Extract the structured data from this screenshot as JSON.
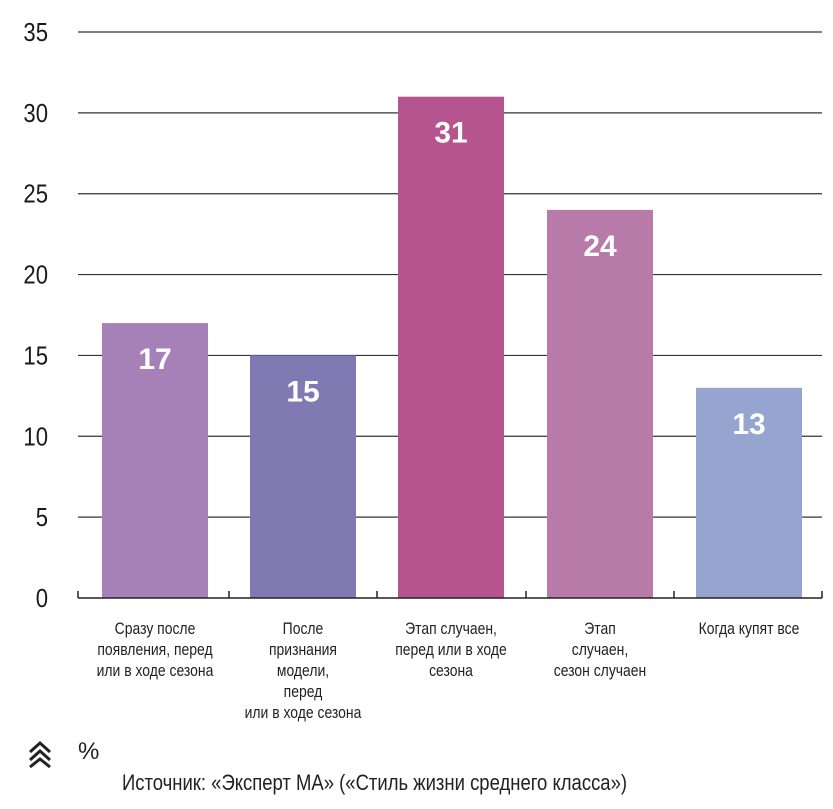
{
  "chart_data": {
    "type": "bar",
    "categories": [
      "Сразу после\nпоявления, перед\nили в ходе сезона",
      "После\nпризнания\nмодели,\nперед\nили в ходе сезона",
      "Этап случаен,\nперед или в ходе\nсезона",
      "Этап\nслучаен,\nсезон случаен",
      "Когда купят все"
    ],
    "values": [
      17,
      15,
      31,
      24,
      13
    ],
    "bar_colors": [
      "#a681b8",
      "#8179b2",
      "#b5548f",
      "#b87aa9",
      "#96a5cf"
    ],
    "ylim": [
      0,
      35
    ],
    "yticks": [
      0,
      5,
      10,
      15,
      20,
      25,
      30,
      35
    ],
    "unit": "%",
    "source": "Источник: «Эксперт МА» («Стиль жизни среднего класса»)",
    "grid": true,
    "gridline_color": "#333333"
  }
}
